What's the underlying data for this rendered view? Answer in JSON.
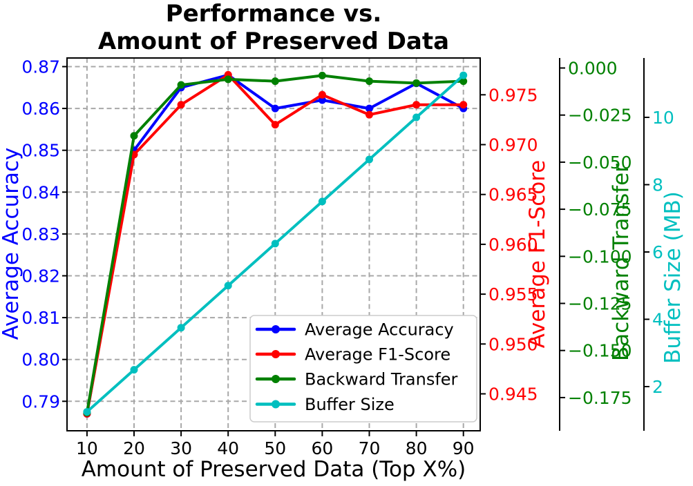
{
  "title": {
    "line1": "Performance vs.",
    "line2": "Amount of Preserved Data"
  },
  "axes": {
    "x": {
      "label": "Amount of Preserved Data (Top X%)",
      "ticks": [
        "10",
        "20",
        "30",
        "40",
        "50",
        "60",
        "70",
        "80",
        "90"
      ],
      "color": "#000000"
    },
    "accuracy": {
      "label": "Average Accuracy",
      "color": "#0000ff",
      "ticks": [
        "0.87",
        "0.86",
        "0.85",
        "0.84",
        "0.83",
        "0.82",
        "0.81",
        "0.80",
        "0.79"
      ]
    },
    "f1": {
      "label": "Average F1-Score",
      "color": "#ff0000",
      "ticks": [
        "0.975",
        "0.970",
        "0.965",
        "0.960",
        "0.955",
        "0.950",
        "0.945"
      ]
    },
    "bwt": {
      "label": "Backward Transfer",
      "color": "#008000",
      "ticks": [
        "0.000",
        "−0.025",
        "−0.050",
        "−0.075",
        "−0.100",
        "−0.125",
        "−0.150",
        "−0.175"
      ]
    },
    "buffer": {
      "label": "Buffer Size (MB)",
      "color": "#00bfbf",
      "ticks": [
        "10",
        "8",
        "6",
        "4",
        "2"
      ]
    }
  },
  "chart_data": {
    "type": "line",
    "title": "Performance vs. Amount of Preserved Data",
    "xlabel": "Amount of Preserved Data (Top X%)",
    "x": [
      10,
      20,
      30,
      40,
      50,
      60,
      70,
      80,
      90
    ],
    "grid": true,
    "legend_position": "lower right inside plot",
    "series": [
      {
        "name": "Average Accuracy",
        "axis": "accuracy",
        "color": "#0000ff",
        "axis_range": [
          0.79,
          0.87
        ],
        "values": [
          0.787,
          0.85,
          0.865,
          0.868,
          0.86,
          0.862,
          0.86,
          0.866,
          0.86
        ]
      },
      {
        "name": "Average F1-Score",
        "axis": "f1",
        "color": "#ff0000",
        "axis_range": [
          0.945,
          0.975
        ],
        "values": [
          0.943,
          0.969,
          0.974,
          0.977,
          0.972,
          0.975,
          0.973,
          0.974,
          0.974
        ]
      },
      {
        "name": "Backward Transfer",
        "axis": "bwt",
        "color": "#008000",
        "axis_range": [
          -0.175,
          0.0
        ],
        "values": [
          -0.183,
          -0.036,
          -0.009,
          -0.006,
          -0.007,
          -0.004,
          -0.007,
          -0.008,
          -0.007
        ]
      },
      {
        "name": "Buffer Size",
        "axis": "buffer",
        "color": "#00bfbf",
        "axis_range": [
          2,
          10
        ],
        "values": [
          1.25,
          2.5,
          3.75,
          5.0,
          6.25,
          7.5,
          8.75,
          10.0,
          11.25
        ]
      }
    ]
  }
}
